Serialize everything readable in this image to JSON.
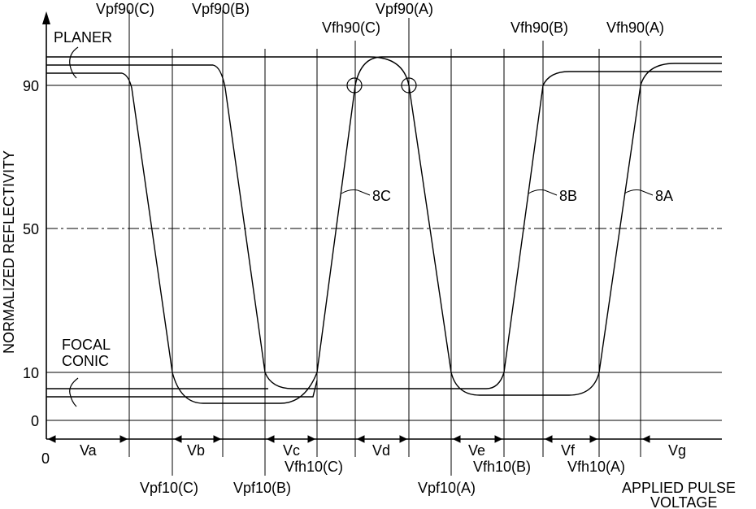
{
  "axes": {
    "y_label": "NORMALIZED REFLECTIVITY",
    "x_label_line1": "APPLIED PULSE",
    "x_label_line2": "VOLTAGE",
    "origin": "0",
    "y_ticks": [
      {
        "label": "90",
        "value": 90
      },
      {
        "label": "50",
        "value": 50
      },
      {
        "label": "10",
        "value": 10
      },
      {
        "label": "0",
        "value": 0
      }
    ]
  },
  "state_labels": {
    "planer": "PLANER",
    "focal_line1": "FOCAL",
    "focal_line2": "CONIC"
  },
  "top_voltage_labels": {
    "vpf90c": "Vpf90(C)",
    "vpf90b": "Vpf90(B)",
    "vfh90c": "Vfh90(C)",
    "vpf90a": "Vpf90(A)",
    "vfh90b": "Vfh90(B)",
    "vfh90a": "Vfh90(A)"
  },
  "bottom_voltage_labels": {
    "vpf10c": "Vpf10(C)",
    "vpf10b": "Vpf10(B)",
    "vfh10c": "Vfh10(C)",
    "vpf10a": "Vpf10(A)",
    "vfh10b": "Vfh10(B)",
    "vfh10a": "Vfh10(A)"
  },
  "ranges": {
    "va": "Va",
    "vb": "Vb",
    "vc": "Vc",
    "vd": "Vd",
    "ve": "Ve",
    "vf": "Vf",
    "vg": "Vg"
  },
  "curves": {
    "c8c": "8C",
    "c8b": "8B",
    "c8a": "8A"
  }
}
